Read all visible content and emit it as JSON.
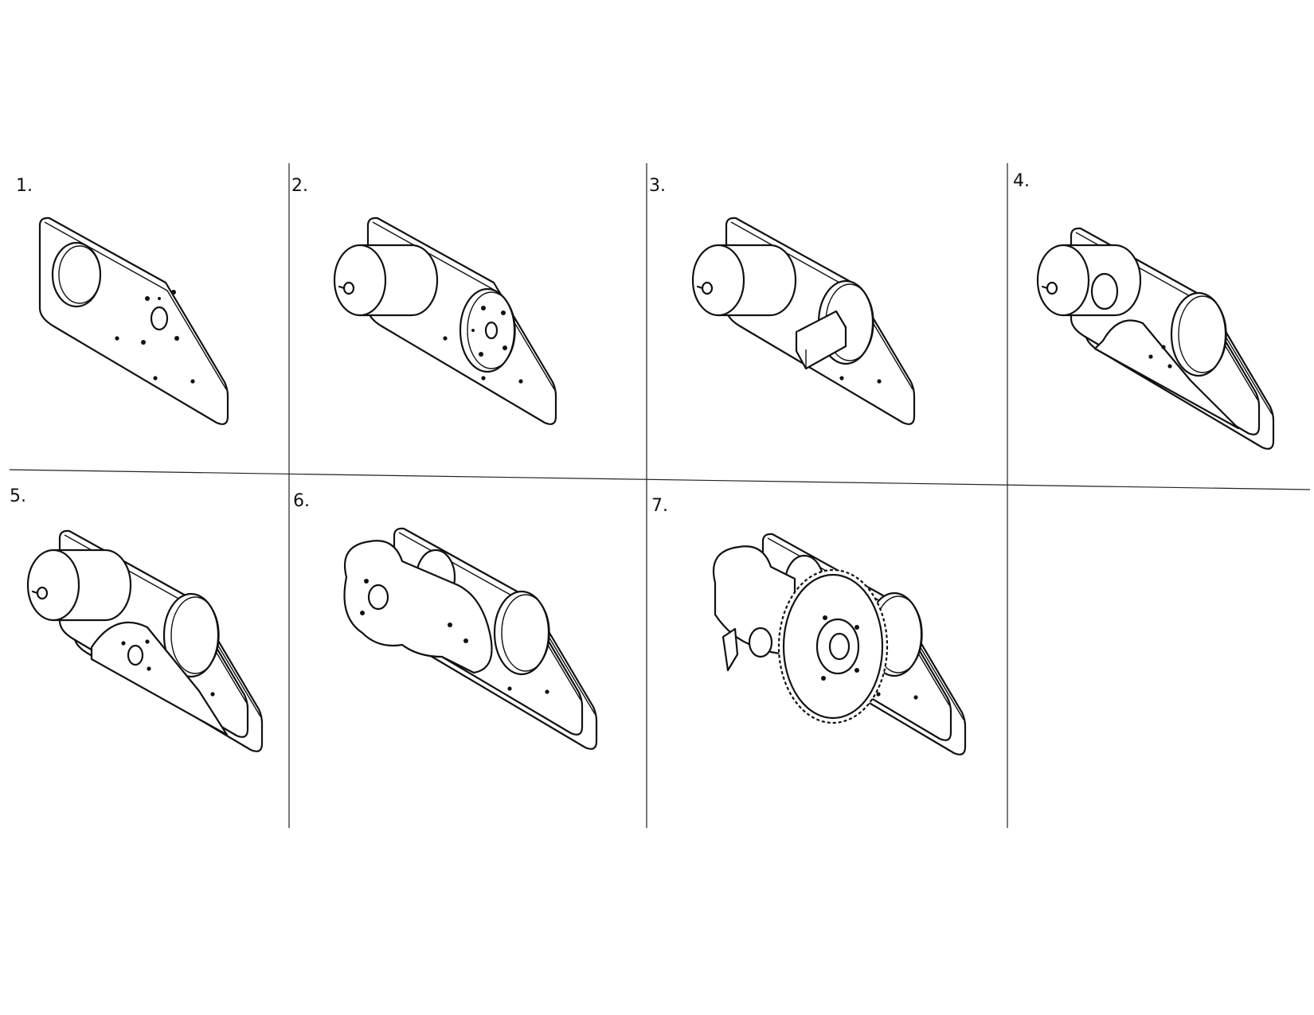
{
  "steps": [
    {
      "label": "1."
    },
    {
      "label": "2."
    },
    {
      "label": "3."
    },
    {
      "label": "4."
    },
    {
      "label": "5."
    },
    {
      "label": "6."
    },
    {
      "label": "7."
    }
  ]
}
